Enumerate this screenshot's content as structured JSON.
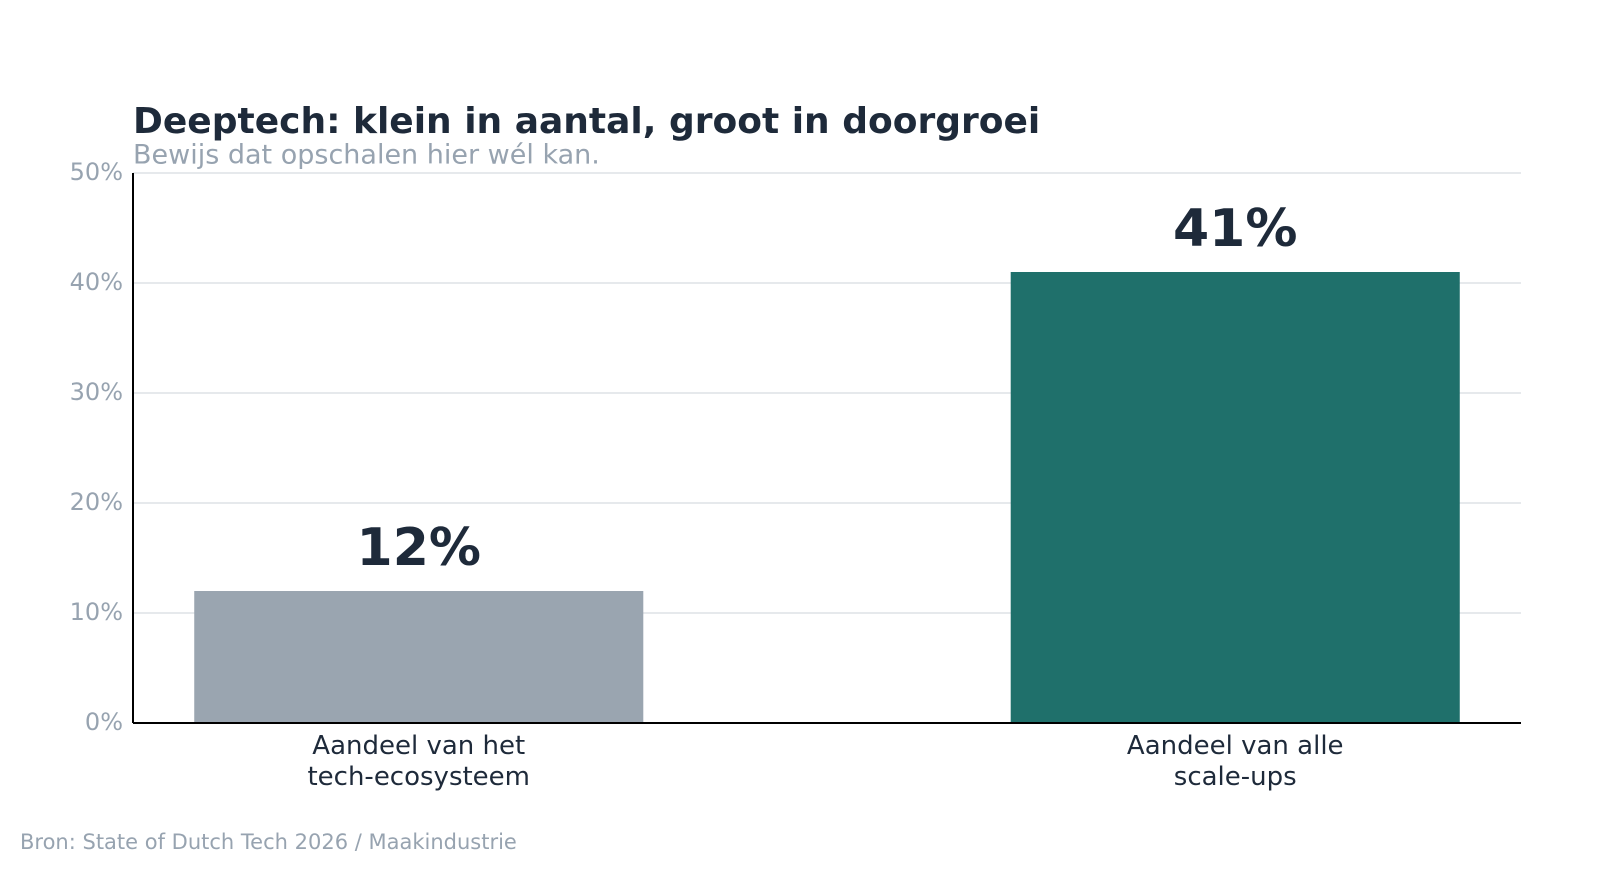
{
  "chart_data": {
    "type": "bar",
    "title": "Deeptech: klein in aantal, groot in doorgroei",
    "subtitle": "Bewijs dat opschalen hier wél kan.",
    "categories": [
      "Aandeel van het\ntech-ecosysteem",
      "Aandeel van alle\nscale-ups"
    ],
    "values": [
      12,
      41
    ],
    "value_labels": [
      "12%",
      "41%"
    ],
    "colors": [
      "#9aa5b0",
      "#1f706b"
    ],
    "ylim": [
      0,
      50
    ],
    "yticks": [
      {
        "value": 0,
        "label": "0%"
      },
      {
        "value": 10,
        "label": "10%"
      },
      {
        "value": 20,
        "label": "20%"
      },
      {
        "value": 30,
        "label": "30%"
      },
      {
        "value": 40,
        "label": "40%"
      },
      {
        "value": 50,
        "label": "50%"
      }
    ],
    "grid": true,
    "source": "Bron: State of Dutch Tech 2026 / Maakindustrie"
  }
}
